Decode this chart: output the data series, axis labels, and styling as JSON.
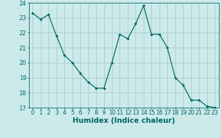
{
  "x": [
    0,
    1,
    2,
    3,
    4,
    5,
    6,
    7,
    8,
    9,
    10,
    11,
    12,
    13,
    14,
    15,
    16,
    17,
    18,
    19,
    20,
    21,
    22,
    23
  ],
  "y": [
    23.3,
    22.9,
    23.2,
    21.8,
    20.5,
    20.0,
    19.3,
    18.7,
    18.3,
    18.3,
    20.0,
    21.9,
    21.6,
    22.6,
    23.8,
    21.9,
    21.9,
    21.0,
    19.0,
    18.5,
    17.5,
    17.5,
    17.1,
    17.0
  ],
  "bg_color": "#cceaea",
  "grid_color": "#aacccc",
  "line_color": "#006666",
  "marker_color": "#006666",
  "xlabel": "Humidex (Indice chaleur)",
  "ylim": [
    17,
    24
  ],
  "xlim": [
    -0.5,
    23.5
  ],
  "yticks": [
    17,
    18,
    19,
    20,
    21,
    22,
    23,
    24
  ],
  "xticks": [
    0,
    1,
    2,
    3,
    4,
    5,
    6,
    7,
    8,
    9,
    10,
    11,
    12,
    13,
    14,
    15,
    16,
    17,
    18,
    19,
    20,
    21,
    22,
    23
  ],
  "tick_fontsize": 6,
  "xlabel_fontsize": 7.5
}
